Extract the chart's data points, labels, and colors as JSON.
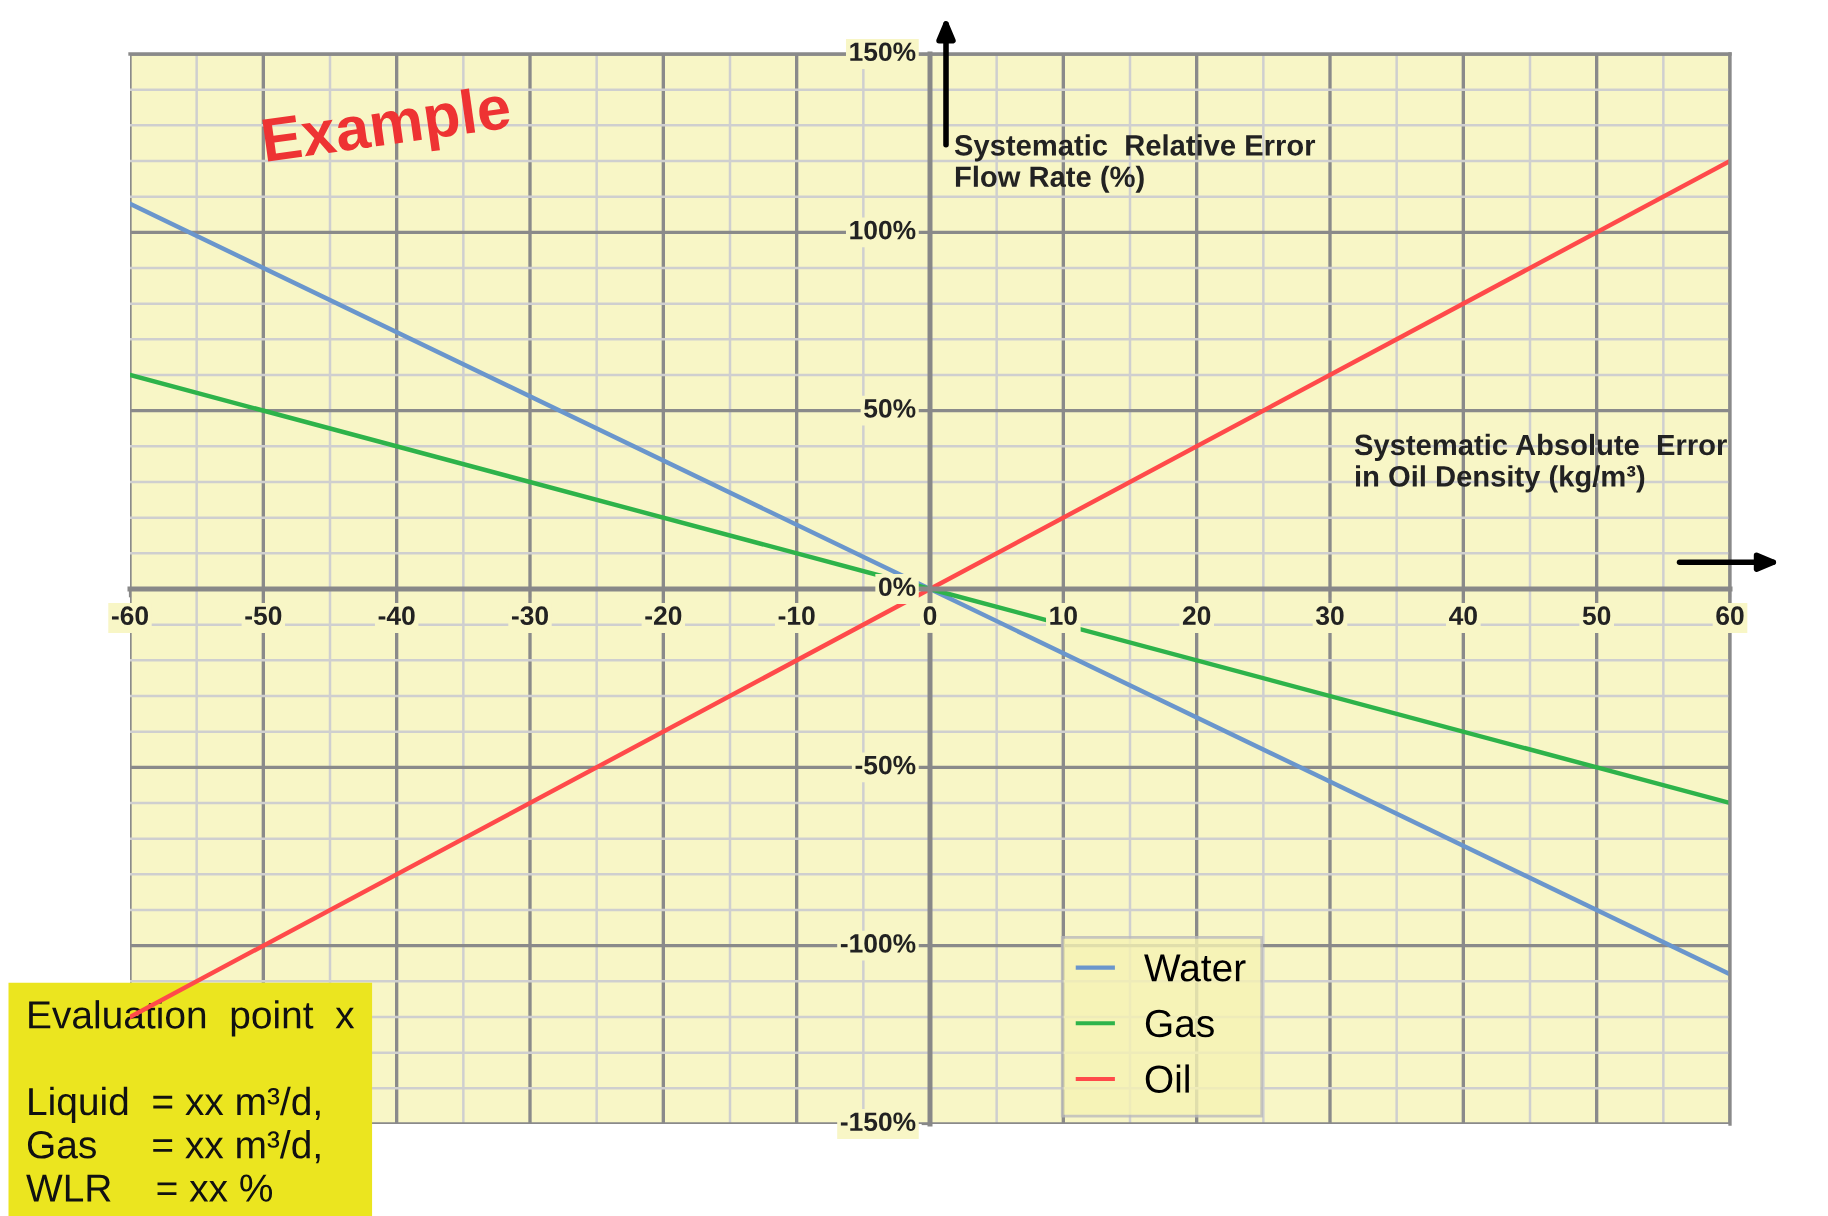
{
  "chart_data": {
    "type": "line",
    "xlabel": "Systematic Absolute  Error\nin Oil Density (kg/m³)",
    "ylabel": "Systematic  Relative Error\nFlow Rate (%)",
    "x": [
      -60,
      0,
      60
    ],
    "series": [
      {
        "name": "Water",
        "color": "#6a96cc",
        "values": [
          108,
          0,
          -108
        ]
      },
      {
        "name": "Gas",
        "color": "#2eb34a",
        "values": [
          60,
          0,
          -60
        ]
      },
      {
        "name": "Oil",
        "color": "#ff4a4a",
        "values": [
          -120,
          0,
          120
        ]
      }
    ],
    "xlim": [
      -60,
      60
    ],
    "ylim": [
      -150,
      150
    ],
    "xticks": [
      -60,
      -50,
      -40,
      -30,
      -20,
      -10,
      0,
      10,
      20,
      30,
      40,
      50,
      60
    ],
    "yticks": [
      {
        "value": -150,
        "label": "-150%"
      },
      {
        "value": -100,
        "label": "-100%"
      },
      {
        "value": -50,
        "label": "-50%"
      },
      {
        "value": 0,
        "label": "0%"
      },
      {
        "value": 50,
        "label": "50%"
      },
      {
        "value": 100,
        "label": "100%"
      },
      {
        "value": 150,
        "label": "150%"
      }
    ],
    "grid": true,
    "legend": "bottom",
    "annotations": [
      "Example",
      "Evaluation  point  x\n\nLiquid  = xx m³/d,\nGas     = xx m³/d,\nWLR    = xx %"
    ]
  }
}
